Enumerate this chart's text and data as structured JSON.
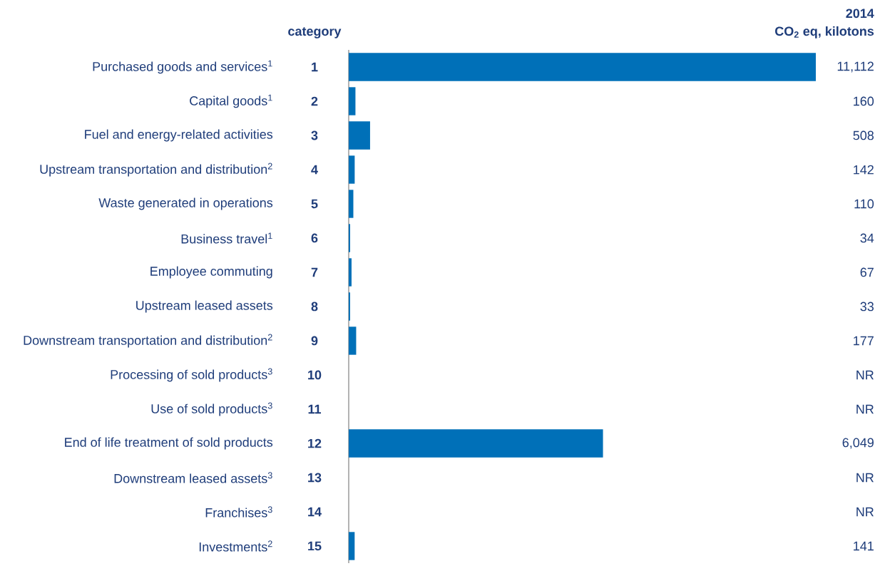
{
  "chart_data": {
    "type": "bar",
    "orientation": "horizontal",
    "xlabel": "CO$_{2}$ eq, kilotons",
    "categories": [
      "Purchased goods and services$^{1}$",
      "Capital goods$^{1}$",
      "Fuel and energy-related activities",
      "Upstream transportation and distribution$^{2}$",
      "Waste generated in operations",
      "Business travel$^{1}$",
      "Employee commuting",
      "Upstream leased assets",
      "Downstream transportation and distribution$^{2}$",
      "Processing of sold products$^{3}$",
      "Use of sold products$^{3}$",
      "End of life treatment of sold products",
      "Downstream leased assets$^{3}$",
      "Franchises$^{3}$",
      "Investments$^{2}$"
    ],
    "values": [
      11112,
      160,
      508,
      142,
      110,
      34,
      67,
      33,
      177,
      null,
      null,
      6049,
      null,
      null,
      141
    ],
    "value_labels": [
      "11,112",
      "160",
      "508",
      "142",
      "110",
      "34",
      "67",
      "33",
      "177",
      "NR",
      "NR",
      "6,049",
      "NR",
      "NR",
      "141"
    ],
    "color": "#0070b8",
    "annotations": [
      "2014",
      "category",
      "1",
      "2",
      "3",
      "4",
      "5",
      "6",
      "7",
      "8",
      "9",
      "10",
      "11",
      "12",
      "13",
      "14",
      "15"
    ]
  }
}
